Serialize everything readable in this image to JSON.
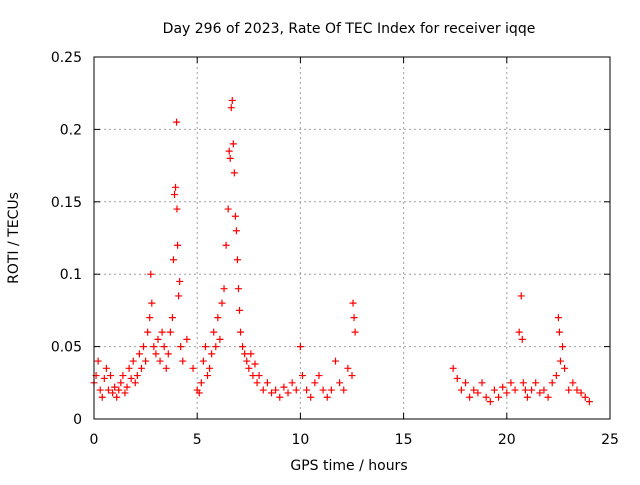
{
  "chart_data": {
    "type": "scatter",
    "title": "Day 296 of 2023, Rate Of TEC Index for receiver iqqe",
    "xlabel": "GPS time / hours",
    "ylabel": "ROTI / TECUs",
    "xlim": [
      0,
      25
    ],
    "ylim": [
      0,
      0.25
    ],
    "xticks": [
      0,
      5,
      10,
      15,
      20,
      25
    ],
    "yticks": [
      0,
      0.05,
      0.1,
      0.15,
      0.2,
      0.25
    ],
    "xtick_labels": [
      "0",
      "5",
      "10",
      "15",
      "20",
      "25"
    ],
    "ytick_labels": [
      "0",
      "0.05",
      "0.1",
      "0.15",
      "0.2",
      "0.25"
    ],
    "grid": true,
    "marker": "+",
    "marker_color": "#ff0000",
    "series": [
      {
        "name": "ROTI",
        "x": [
          0.0,
          0.1,
          0.2,
          0.3,
          0.4,
          0.5,
          0.6,
          0.7,
          0.8,
          0.9,
          1.0,
          1.1,
          1.2,
          1.3,
          1.4,
          1.5,
          1.6,
          1.7,
          1.8,
          1.9,
          2.0,
          2.1,
          2.2,
          2.3,
          2.4,
          2.5,
          2.6,
          2.7,
          2.75,
          2.8,
          2.9,
          3.0,
          3.1,
          3.2,
          3.3,
          3.4,
          3.5,
          3.6,
          3.7,
          3.8,
          3.85,
          3.9,
          3.95,
          4.0,
          4.02,
          4.05,
          4.1,
          4.15,
          4.2,
          4.3,
          4.5,
          4.8,
          5.0,
          5.1,
          5.2,
          5.3,
          5.4,
          5.5,
          5.6,
          5.7,
          5.8,
          5.9,
          6.0,
          6.1,
          6.2,
          6.3,
          6.4,
          6.5,
          6.55,
          6.6,
          6.65,
          6.7,
          6.75,
          6.8,
          6.85,
          6.9,
          6.95,
          7.0,
          7.05,
          7.1,
          7.2,
          7.3,
          7.4,
          7.5,
          7.6,
          7.7,
          7.8,
          7.9,
          8.0,
          8.2,
          8.4,
          8.6,
          8.8,
          9.0,
          9.2,
          9.4,
          9.6,
          9.8,
          10.0,
          10.1,
          10.3,
          10.5,
          10.7,
          10.9,
          11.1,
          11.3,
          11.5,
          11.7,
          11.9,
          12.1,
          12.3,
          12.5,
          12.55,
          12.6,
          12.65,
          17.4,
          17.6,
          17.8,
          18.0,
          18.2,
          18.4,
          18.6,
          18.8,
          19.0,
          19.2,
          19.4,
          19.6,
          19.8,
          20.0,
          20.2,
          20.4,
          20.6,
          20.7,
          20.75,
          20.8,
          20.9,
          21.0,
          21.2,
          21.4,
          21.6,
          21.8,
          22.0,
          22.2,
          22.4,
          22.5,
          22.55,
          22.6,
          22.7,
          22.8,
          23.0,
          23.2,
          23.4,
          23.6,
          23.8,
          24.0
        ],
        "y": [
          0.025,
          0.03,
          0.04,
          0.02,
          0.015,
          0.028,
          0.035,
          0.02,
          0.03,
          0.018,
          0.022,
          0.015,
          0.02,
          0.025,
          0.03,
          0.018,
          0.022,
          0.035,
          0.028,
          0.04,
          0.025,
          0.03,
          0.045,
          0.035,
          0.05,
          0.04,
          0.06,
          0.07,
          0.1,
          0.08,
          0.05,
          0.045,
          0.055,
          0.04,
          0.06,
          0.05,
          0.035,
          0.045,
          0.06,
          0.07,
          0.11,
          0.155,
          0.16,
          0.205,
          0.145,
          0.12,
          0.085,
          0.095,
          0.05,
          0.04,
          0.055,
          0.035,
          0.02,
          0.018,
          0.025,
          0.04,
          0.05,
          0.03,
          0.035,
          0.045,
          0.06,
          0.05,
          0.07,
          0.055,
          0.08,
          0.09,
          0.12,
          0.145,
          0.185,
          0.18,
          0.215,
          0.22,
          0.19,
          0.17,
          0.14,
          0.13,
          0.11,
          0.09,
          0.075,
          0.06,
          0.05,
          0.045,
          0.04,
          0.035,
          0.045,
          0.03,
          0.038,
          0.025,
          0.03,
          0.02,
          0.025,
          0.018,
          0.02,
          0.015,
          0.022,
          0.018,
          0.025,
          0.02,
          0.05,
          0.03,
          0.02,
          0.015,
          0.025,
          0.03,
          0.02,
          0.015,
          0.02,
          0.04,
          0.025,
          0.02,
          0.035,
          0.03,
          0.08,
          0.07,
          0.06,
          0.035,
          0.028,
          0.02,
          0.025,
          0.015,
          0.02,
          0.018,
          0.025,
          0.015,
          0.012,
          0.02,
          0.015,
          0.022,
          0.018,
          0.025,
          0.02,
          0.06,
          0.085,
          0.055,
          0.025,
          0.02,
          0.015,
          0.02,
          0.025,
          0.018,
          0.02,
          0.015,
          0.025,
          0.03,
          0.07,
          0.06,
          0.04,
          0.05,
          0.035,
          0.02,
          0.025,
          0.02,
          0.018,
          0.015,
          0.012
        ]
      }
    ]
  }
}
